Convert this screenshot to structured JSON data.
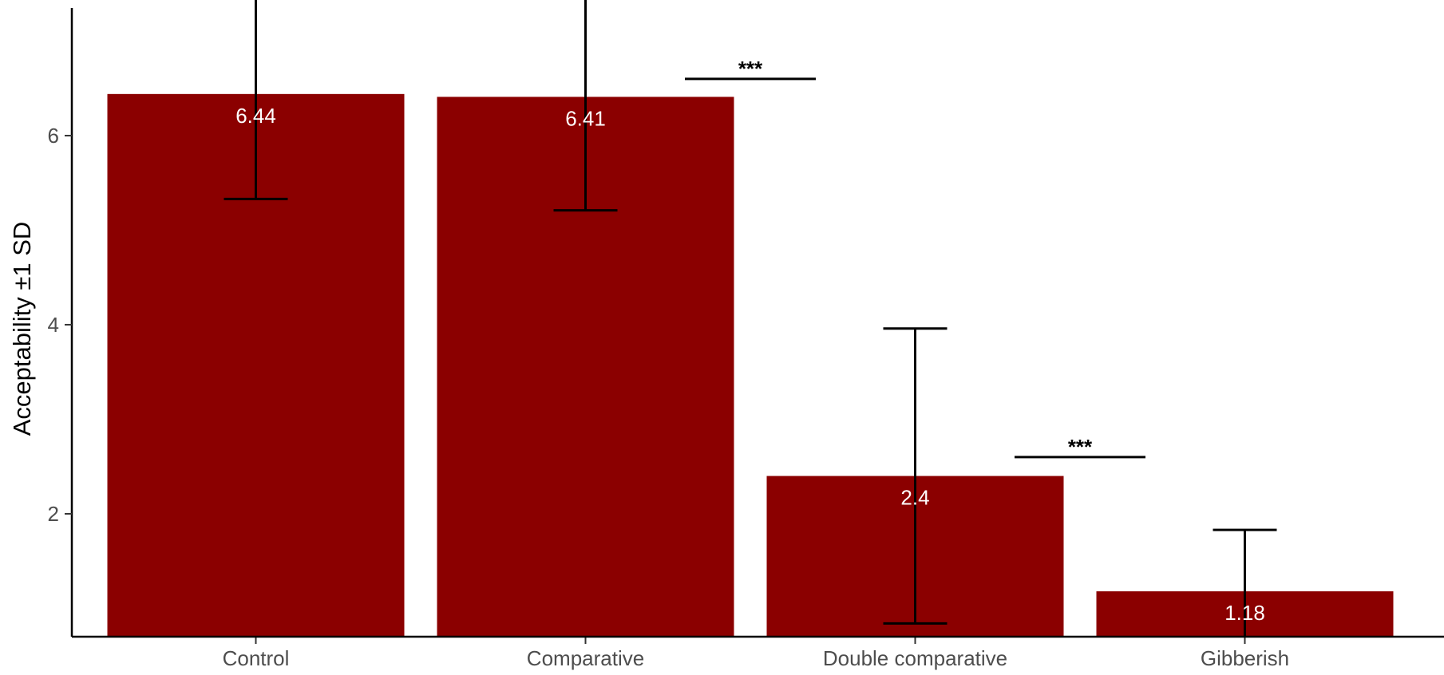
{
  "chart_data": {
    "type": "bar",
    "title": "",
    "xlabel": "",
    "ylabel": "Acceptability ±1 SD",
    "categories": [
      "Control",
      "Comparative",
      "Double comparative",
      "Gibberish"
    ],
    "values": [
      6.44,
      6.41,
      2.4,
      1.18
    ],
    "value_labels": [
      "6.44",
      "6.41",
      "2.4",
      "1.18"
    ],
    "error_low": [
      5.33,
      5.21,
      0.84,
      null
    ],
    "error_high": [
      7.6,
      7.6,
      3.96,
      1.83
    ],
    "ylim": [
      0.7,
      7.35
    ],
    "yticks": [
      2,
      4,
      6
    ],
    "ytick_labels": [
      "2",
      "4",
      "6"
    ],
    "grid": false,
    "bar_color": "#8b0000",
    "significance": [
      {
        "between": [
          "Comparative",
          "Double comparative"
        ],
        "y": 6.6,
        "label": "***"
      },
      {
        "between": [
          "Double comparative",
          "Gibberish"
        ],
        "y": 2.6,
        "label": "***"
      }
    ]
  }
}
